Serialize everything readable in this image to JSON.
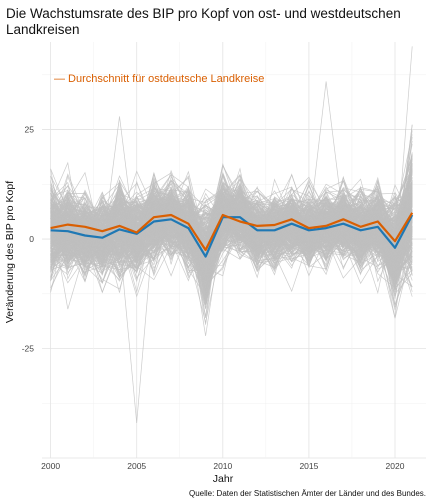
{
  "chart_data": {
    "type": "line",
    "title": "Die Wachstumsrate des BIP pro Kopf von ost- und westdeutschen Landkreisen",
    "title_lines": [
      "Die Wachstumsrate des BIP pro Kopf von ost- und westdeutschen",
      "Landkreisen"
    ],
    "xlabel": "Jahr",
    "ylabel": "Veränderung des BIP pro Kopf",
    "caption": "Quelle: Daten der Statistischen Ämter der Länder und des Bundes.",
    "annotation": "— Durchschnitt für ostdeutsche Landkreise",
    "xlim": [
      1999.5,
      2021.8
    ],
    "ylim": [
      -50,
      45
    ],
    "x_ticks": [
      2000,
      2005,
      2010,
      2015,
      2020
    ],
    "y_ticks": [
      -25,
      0,
      25
    ],
    "grid": true,
    "x": [
      2000,
      2001,
      2002,
      2003,
      2004,
      2005,
      2006,
      2007,
      2008,
      2009,
      2010,
      2011,
      2012,
      2013,
      2014,
      2015,
      2016,
      2017,
      2018,
      2019,
      2020,
      2021
    ],
    "series": [
      {
        "role": "average_all",
        "color": "#1f78b4",
        "values": [
          2.0,
          1.8,
          0.8,
          0.3,
          2.2,
          1.2,
          4.0,
          4.5,
          2.5,
          -4.0,
          5.0,
          5.0,
          2.0,
          2.0,
          3.5,
          2.0,
          2.5,
          3.5,
          2.0,
          2.8,
          -2.0,
          5.5
        ]
      },
      {
        "name": "Durchschnitt für ostdeutsche Landkreise",
        "role": "average_east",
        "color": "#d95f02",
        "values": [
          2.5,
          3.3,
          2.8,
          1.8,
          3.0,
          1.5,
          5.0,
          5.5,
          3.5,
          -2.5,
          5.5,
          4.0,
          3.0,
          3.2,
          4.5,
          2.5,
          3.0,
          4.5,
          2.8,
          4.0,
          -0.5,
          6.0
        ]
      }
    ],
    "background_series": {
      "description_count": 400,
      "color": "#bfbfbf",
      "mean": [
        2.0,
        1.8,
        0.8,
        0.3,
        2.2,
        1.2,
        4.0,
        4.5,
        2.5,
        -4.0,
        5.0,
        5.0,
        2.0,
        2.0,
        3.5,
        2.0,
        2.5,
        3.5,
        2.0,
        2.8,
        -2.0,
        5.5
      ],
      "spread": [
        5.5,
        5.0,
        4.5,
        4.5,
        5.0,
        5.0,
        4.5,
        4.5,
        4.5,
        6.0,
        5.0,
        4.5,
        4.0,
        4.0,
        4.0,
        4.0,
        4.0,
        4.0,
        4.0,
        4.5,
        6.0,
        8.0
      ],
      "extremes": [
        {
          "x": 2005,
          "y": -42
        },
        {
          "x": 2004,
          "y": 28
        },
        {
          "x": 2016,
          "y": 36
        },
        {
          "x": 2021,
          "y": 44
        },
        {
          "x": 2020,
          "y": -18
        },
        {
          "x": 2001,
          "y": -16
        },
        {
          "x": 2021,
          "y": -11
        },
        {
          "x": 2009,
          "y": -16
        }
      ]
    }
  }
}
